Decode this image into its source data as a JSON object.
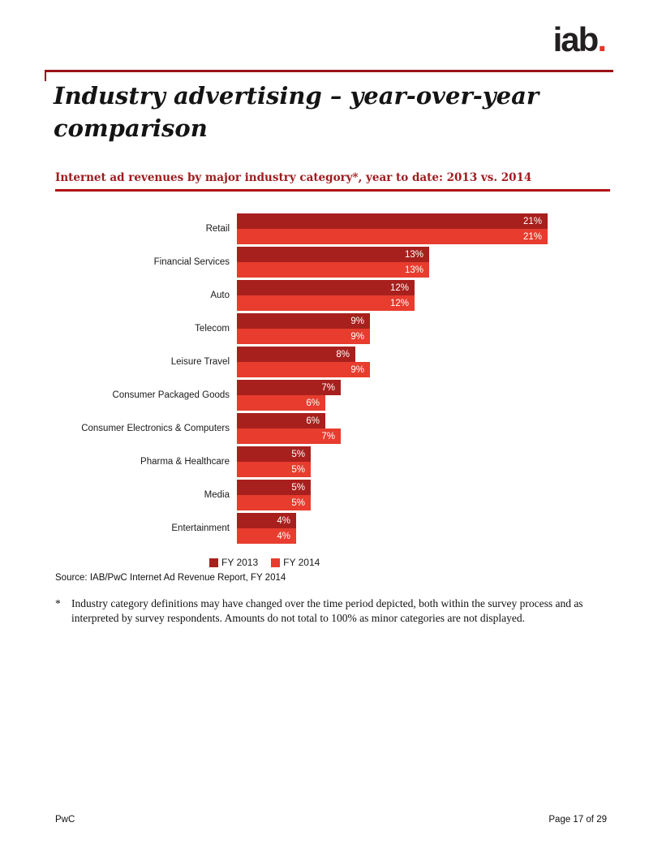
{
  "page": {
    "logo_text": "iab",
    "logo_dot": ".",
    "title_line1": "Industry advertising – year-over-year",
    "title_line2": "comparison",
    "subtitle": "Internet ad revenues by major industry category*, year to date: 2013 vs. 2014",
    "source": "Source: IAB/PwC Internet Ad Revenue Report, FY 2014",
    "footnote_marker": "*",
    "footnote": "Industry category definitions may have changed over the time period depicted, both within the survey process and as interpreted by survey respondents. Amounts do not total to 100% as minor categories are not displayed.",
    "footer_left": "PwC",
    "footer_right": "Page 17 of 29"
  },
  "colors": {
    "fy2013": "#A8201D",
    "fy2014": "#E73C2E",
    "rule_red": "#B01117",
    "subtitle_red": "#9E1B1E",
    "logo_dot_red": "#E5362D"
  },
  "chart_data": {
    "type": "bar",
    "orientation": "horizontal",
    "title": "Internet ad revenues by major industry category, year to date: 2013 vs. 2014",
    "categories": [
      "Retail",
      "Financial Services",
      "Auto",
      "Telecom",
      "Leisure Travel",
      "Consumer Packaged Goods",
      "Consumer Electronics & Computers",
      "Pharma & Healthcare",
      "Media",
      "Entertainment"
    ],
    "series": [
      {
        "name": "FY 2013",
        "color": "#A8201D",
        "values": [
          21,
          13,
          12,
          9,
          8,
          7,
          6,
          5,
          5,
          4
        ]
      },
      {
        "name": "FY 2014",
        "color": "#E73C2E",
        "values": [
          21,
          13,
          12,
          9,
          9,
          6,
          7,
          5,
          5,
          4
        ]
      }
    ],
    "value_suffix": "%",
    "xlim": [
      0,
      22
    ],
    "grid": false,
    "legend_position": "bottom"
  }
}
